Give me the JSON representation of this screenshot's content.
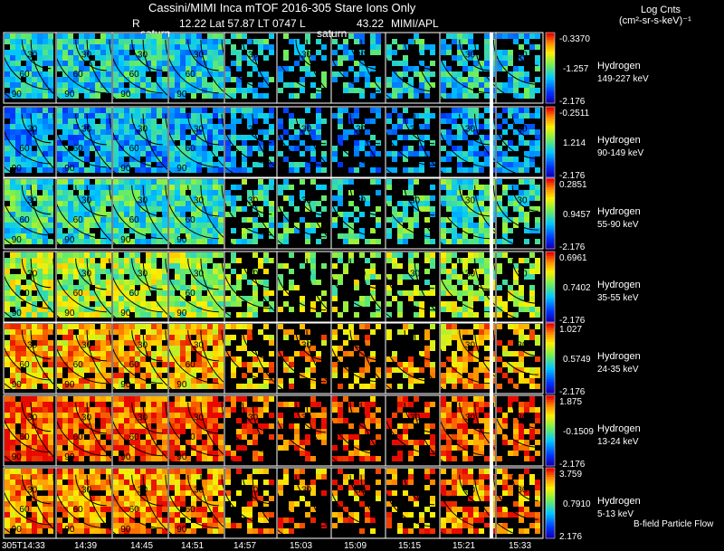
{
  "header": {
    "title": "Cassini/MIMI Inca mTOF  2016-305   Stare   Ions Only",
    "r_label": "R",
    "ephemeris": "12.22 Lat 57.87 LT 0747 L",
    "l_value": "43.22",
    "credit": "MIMI/APL",
    "saturn_labels": [
      "saturn",
      "saturn"
    ]
  },
  "units": {
    "line1": "Log Cnts",
    "line2": "(cm²-sr-s-keV)⁻¹"
  },
  "footer": {
    "note": "B-field Particle Flow"
  },
  "chart_data": {
    "type": "heatmap",
    "title": "Cassini/MIMI Inca mTOF 2016-305 Stare Ions Only",
    "columns": [
      "305T14:33",
      "14:39",
      "14:45",
      "14:51",
      "14:57",
      "15:03",
      "15:09",
      "15:15",
      "15:21",
      "15:33"
    ],
    "rows": [
      {
        "species": "Hydrogen",
        "energy": "149-227 keV",
        "scale_max": "-0.3370",
        "scale_mid": "-1.257",
        "scale_min": "-2.176"
      },
      {
        "species": "Hydrogen",
        "energy": "90-149 keV",
        "scale_max": "-0.2511",
        "scale_mid": "1.214",
        "scale_min": "-2.176"
      },
      {
        "species": "Hydrogen",
        "energy": "55-90 keV",
        "scale_max": "0.2851",
        "scale_mid": "0.9457",
        "scale_min": "-2.176"
      },
      {
        "species": "Hydrogen",
        "energy": "35-55 keV",
        "scale_max": "0.6961",
        "scale_mid": "0.7402",
        "scale_min": "-2.176"
      },
      {
        "species": "Hydrogen",
        "energy": "24-35 keV",
        "scale_max": "1.027",
        "scale_mid": "0.5749",
        "scale_min": "-2.176"
      },
      {
        "species": "Hydrogen",
        "energy": "13-24 keV",
        "scale_max": "1.875",
        "scale_mid": "-0.1509",
        "scale_min": "-2.176"
      },
      {
        "species": "Hydrogen",
        "energy": "5-13 keV",
        "scale_max": "3.759",
        "scale_mid": "0.7910",
        "scale_min": "2.176"
      }
    ],
    "row_intensity": [
      0.38,
      0.3,
      0.45,
      0.6,
      0.8,
      0.92,
      0.85
    ],
    "column_coverage": [
      1.0,
      1.0,
      1.0,
      1.0,
      0.55,
      0.4,
      0.45,
      0.5,
      0.8,
      0.6
    ],
    "contour_labels": [
      "30",
      "60",
      "90"
    ]
  }
}
